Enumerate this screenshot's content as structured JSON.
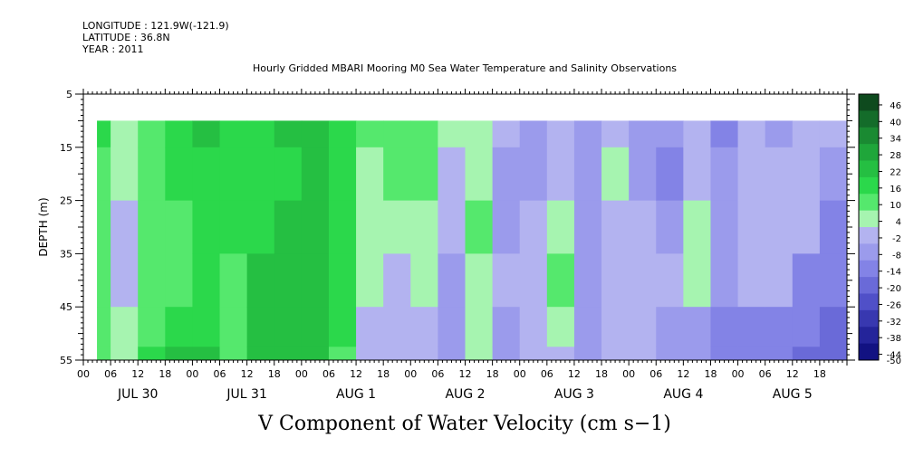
{
  "header": {
    "longitude": "LONGITUDE : 121.9W(-121.9)",
    "latitude": "LATITUDE : 36.8N",
    "year": "YEAR : 2011"
  },
  "chart_data": {
    "type": "heatmap",
    "title": "Hourly Gridded MBARI Mooring M0 Sea Water Temperature and Salinity Observations",
    "xlabel": "V Component of Water Velocity (cm s−1)",
    "ylabel": "DEPTH (m)",
    "ylim": [
      55,
      5
    ],
    "y_ticks": [
      5,
      15,
      25,
      35,
      45,
      55
    ],
    "data_depth_range": [
      10,
      55
    ],
    "x_hour_ticks": [
      "00",
      "06",
      "12",
      "18",
      "00",
      "06",
      "12",
      "18",
      "00",
      "06",
      "12",
      "18",
      "00",
      "06",
      "12",
      "18",
      "00",
      "06",
      "12",
      "18",
      "00",
      "06",
      "12",
      "18",
      "00",
      "06",
      "12",
      "18"
    ],
    "x_day_labels": [
      "JUL 30",
      "JUL 31",
      "AUG  1",
      "AUG  2",
      "AUG  3",
      "AUG  4",
      "AUG  5"
    ],
    "x_range_hours": [
      0,
      168
    ],
    "data_start_hour": 3,
    "data_end_hour": 168,
    "colorbar": {
      "levels": [
        "46",
        "40",
        "34",
        "28",
        "22",
        "16",
        "10",
        "4",
        "-2",
        "-8",
        "-14",
        "-20",
        "-26",
        "-32",
        "-38",
        "-44",
        "-50"
      ],
      "colors": [
        "#0e4a1e",
        "#146c2a",
        "#1a8a32",
        "#1fa63a",
        "#25bf42",
        "#2bd84b",
        "#55e86d",
        "#a6f4b0",
        "#b3b3f0",
        "#9b9bec",
        "#8383e6",
        "#6a6ad8",
        "#5050c8",
        "#3838b0",
        "#24249a",
        "#121282"
      ]
    },
    "profile_hours": [
      3,
      9,
      15,
      21,
      27,
      33,
      39,
      45,
      51,
      57,
      63,
      69,
      75,
      81,
      87,
      93,
      99,
      105,
      111,
      117,
      123,
      129,
      135,
      141,
      147,
      153,
      159,
      165
    ],
    "profile_depths": [
      10,
      20,
      30,
      40,
      50,
      55
    ],
    "values": [
      [
        12,
        10,
        8,
        6,
        5,
        5
      ],
      [
        4,
        2,
        -4,
        -6,
        2,
        4
      ],
      [
        8,
        8,
        6,
        6,
        10,
        12
      ],
      [
        14,
        12,
        10,
        10,
        16,
        18
      ],
      [
        18,
        16,
        14,
        14,
        16,
        18
      ],
      [
        16,
        14,
        12,
        8,
        8,
        10
      ],
      [
        14,
        12,
        16,
        18,
        18,
        18
      ],
      [
        18,
        16,
        20,
        20,
        22,
        22
      ],
      [
        22,
        20,
        22,
        22,
        22,
        22
      ],
      [
        16,
        14,
        14,
        12,
        12,
        10
      ],
      [
        6,
        2,
        4,
        2,
        -2,
        -4
      ],
      [
        10,
        6,
        4,
        -4,
        -6,
        -6
      ],
      [
        8,
        6,
        4,
        2,
        -4,
        -6
      ],
      [
        2,
        -4,
        -6,
        -8,
        -8,
        -10
      ],
      [
        4,
        4,
        6,
        4,
        2,
        0
      ],
      [
        -6,
        -8,
        -8,
        -6,
        -10,
        -10
      ],
      [
        -10,
        -8,
        -4,
        -2,
        -4,
        -4
      ],
      [
        -6,
        -4,
        4,
        6,
        2,
        -2
      ],
      [
        -12,
        -10,
        -10,
        -8,
        -12,
        -12
      ],
      [
        -4,
        2,
        -2,
        -4,
        -6,
        -6
      ],
      [
        -10,
        -8,
        -6,
        -2,
        -6,
        -6
      ],
      [
        -12,
        -14,
        -10,
        -6,
        -12,
        -12
      ],
      [
        -4,
        -6,
        2,
        2,
        -8,
        -10
      ],
      [
        -14,
        -12,
        -10,
        -8,
        -16,
        -16
      ],
      [
        -4,
        -2,
        -2,
        -4,
        -16,
        -18
      ],
      [
        -8,
        -6,
        -4,
        -4,
        -14,
        -16
      ],
      [
        -6,
        -4,
        -6,
        -14,
        -18,
        -20
      ],
      [
        -4,
        -10,
        -14,
        -18,
        -20,
        -20
      ]
    ]
  }
}
